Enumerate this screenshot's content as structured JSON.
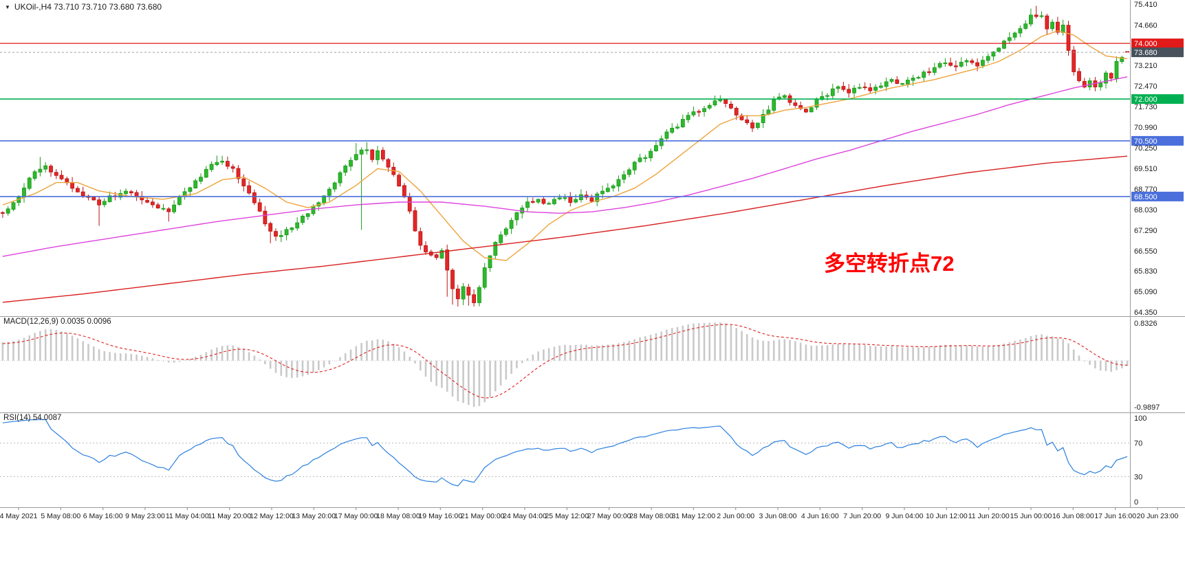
{
  "header": {
    "title": "UKOil-,H4  73.710 73.710 73.680 73.680",
    "symbol": "UKOil-",
    "timeframe": "H4"
  },
  "icons": {
    "chart_menu_arrow": "▼"
  },
  "chart_data": {
    "type": "candlestick",
    "symbol": "UKOil-",
    "timeframe": "H4",
    "current_bar": {
      "open": 73.71,
      "high": 73.71,
      "low": 73.68,
      "close": 73.68
    },
    "current_price": 73.68,
    "ylim": [
      64.35,
      75.41
    ],
    "bars": 211,
    "price_axis_labels": [
      {
        "text": "75.410"
      },
      {
        "text": "74.660"
      },
      {
        "text": "74.000",
        "badge": "#e21a1a"
      },
      {
        "text": "73.680",
        "badge": "#47525c"
      },
      {
        "text": "73.210"
      },
      {
        "text": "72.470"
      },
      {
        "text": "72.000",
        "badge": "#00b050"
      },
      {
        "text": "71.730"
      },
      {
        "text": "70.990"
      },
      {
        "text": "70.500",
        "badge": "#4a6fdc"
      },
      {
        "text": "70.250"
      },
      {
        "text": "69.510"
      },
      {
        "text": "68.770"
      },
      {
        "text": "68.500",
        "badge": "#4a6fdc"
      },
      {
        "text": "68.030"
      },
      {
        "text": "67.290"
      },
      {
        "text": "66.550"
      },
      {
        "text": "65.830"
      },
      {
        "text": "65.090"
      },
      {
        "text": "64.350"
      }
    ],
    "hlines": [
      {
        "price": 74.0,
        "color": "#e21a1a",
        "width": 1.3
      },
      {
        "price": 72.0,
        "color": "#00b050",
        "width": 1.6
      },
      {
        "price": 70.5,
        "color": "#4a6fdc",
        "width": 1.6
      },
      {
        "price": 68.5,
        "color": "#4a6fdc",
        "width": 1.6
      }
    ],
    "candle_colors": {
      "up": "#2eb82e",
      "up_stroke": "#179917",
      "down": "#e32727",
      "down_stroke": "#bb1111"
    },
    "close_anchors": [
      [
        0,
        67.95
      ],
      [
        3,
        68.5
      ],
      [
        6,
        69.45
      ],
      [
        8,
        69.6
      ],
      [
        10,
        69.3
      ],
      [
        13,
        68.75
      ],
      [
        16,
        68.45
      ],
      [
        18,
        68.2
      ],
      [
        20,
        68.5
      ],
      [
        23,
        68.65
      ],
      [
        26,
        68.4
      ],
      [
        29,
        68.15
      ],
      [
        31,
        67.9
      ],
      [
        33,
        68.45
      ],
      [
        36,
        69.0
      ],
      [
        39,
        69.6
      ],
      [
        41,
        69.8
      ],
      [
        43,
        69.45
      ],
      [
        45,
        68.9
      ],
      [
        47,
        68.3
      ],
      [
        49,
        67.5
      ],
      [
        51,
        67.05
      ],
      [
        53,
        67.3
      ],
      [
        55,
        67.55
      ],
      [
        57,
        67.95
      ],
      [
        60,
        68.5
      ],
      [
        62,
        69.0
      ],
      [
        64,
        69.6
      ],
      [
        66,
        70.05
      ],
      [
        68,
        70.25
      ],
      [
        69,
        69.9
      ],
      [
        70,
        70.15
      ],
      [
        71,
        69.8
      ],
      [
        73,
        69.3
      ],
      [
        75,
        68.5
      ],
      [
        77,
        67.3
      ],
      [
        78,
        66.8
      ],
      [
        79,
        66.5
      ],
      [
        81,
        66.3
      ],
      [
        82,
        66.55
      ],
      [
        83,
        65.9
      ],
      [
        84,
        65.2
      ],
      [
        85,
        64.85
      ],
      [
        86,
        65.25
      ],
      [
        87,
        64.9
      ],
      [
        88,
        64.75
      ],
      [
        89,
        65.3
      ],
      [
        90,
        65.9
      ],
      [
        91,
        66.4
      ],
      [
        92,
        66.8
      ],
      [
        94,
        67.3
      ],
      [
        96,
        67.9
      ],
      [
        98,
        68.25
      ],
      [
        100,
        68.45
      ],
      [
        102,
        68.2
      ],
      [
        104,
        68.5
      ],
      [
        106,
        68.3
      ],
      [
        108,
        68.55
      ],
      [
        110,
        68.4
      ],
      [
        112,
        68.65
      ],
      [
        114,
        68.95
      ],
      [
        116,
        69.35
      ],
      [
        118,
        69.7
      ],
      [
        120,
        69.95
      ],
      [
        122,
        70.35
      ],
      [
        124,
        70.75
      ],
      [
        126,
        71.05
      ],
      [
        128,
        71.35
      ],
      [
        130,
        71.6
      ],
      [
        132,
        71.85
      ],
      [
        134,
        72.05
      ],
      [
        136,
        71.7
      ],
      [
        138,
        71.2
      ],
      [
        140,
        70.95
      ],
      [
        142,
        71.45
      ],
      [
        144,
        71.9
      ],
      [
        146,
        72.1
      ],
      [
        148,
        71.75
      ],
      [
        150,
        71.5
      ],
      [
        152,
        71.95
      ],
      [
        154,
        72.2
      ],
      [
        156,
        72.4
      ],
      [
        158,
        72.2
      ],
      [
        160,
        72.45
      ],
      [
        162,
        72.3
      ],
      [
        164,
        72.55
      ],
      [
        166,
        72.7
      ],
      [
        168,
        72.5
      ],
      [
        170,
        72.75
      ],
      [
        172,
        72.9
      ],
      [
        174,
        73.1
      ],
      [
        176,
        73.3
      ],
      [
        178,
        73.1
      ],
      [
        180,
        73.4
      ],
      [
        182,
        73.2
      ],
      [
        184,
        73.55
      ],
      [
        186,
        73.9
      ],
      [
        188,
        74.25
      ],
      [
        190,
        74.6
      ],
      [
        192,
        74.95
      ],
      [
        194,
        75.0
      ],
      [
        195,
        74.55
      ],
      [
        196,
        74.75
      ],
      [
        197,
        74.35
      ],
      [
        198,
        74.6
      ],
      [
        199,
        73.8
      ],
      [
        200,
        73.0
      ],
      [
        201,
        72.7
      ],
      [
        202,
        72.5
      ],
      [
        203,
        72.65
      ],
      [
        204,
        72.4
      ],
      [
        205,
        72.6
      ],
      [
        206,
        72.95
      ],
      [
        207,
        72.75
      ],
      [
        208,
        73.3
      ],
      [
        209,
        73.45
      ],
      [
        210,
        73.68
      ]
    ],
    "wick_marks": [
      {
        "i": 7,
        "high": 69.92
      },
      {
        "i": 18,
        "low": 67.45
      },
      {
        "i": 31,
        "low": 67.6
      },
      {
        "i": 40,
        "high": 69.97
      },
      {
        "i": 50,
        "low": 66.82
      },
      {
        "i": 66,
        "high": 70.42
      },
      {
        "i": 67,
        "low": 67.3
      },
      {
        "i": 68,
        "high": 70.45
      },
      {
        "i": 83,
        "low": 64.9
      },
      {
        "i": 84,
        "low": 64.62
      },
      {
        "i": 85,
        "low": 64.55
      },
      {
        "i": 86,
        "low": 64.6
      },
      {
        "i": 87,
        "low": 64.58
      },
      {
        "i": 88,
        "low": 64.55
      },
      {
        "i": 192,
        "high": 75.25
      },
      {
        "i": 193,
        "high": 75.35
      },
      {
        "i": 194,
        "high": 75.15
      },
      {
        "i": 204,
        "low": 72.28
      }
    ],
    "moving_averages": [
      {
        "name": "fast",
        "color": "#eda33b",
        "anchors": [
          [
            0,
            68.2
          ],
          [
            6,
            68.6
          ],
          [
            10,
            69.0
          ],
          [
            14,
            69.0
          ],
          [
            18,
            68.7
          ],
          [
            24,
            68.5
          ],
          [
            30,
            68.4
          ],
          [
            36,
            68.6
          ],
          [
            41,
            69.1
          ],
          [
            45,
            69.2
          ],
          [
            49,
            68.8
          ],
          [
            53,
            68.3
          ],
          [
            57,
            68.1
          ],
          [
            61,
            68.3
          ],
          [
            66,
            68.9
          ],
          [
            70,
            69.5
          ],
          [
            74,
            69.4
          ],
          [
            78,
            68.7
          ],
          [
            82,
            67.8
          ],
          [
            86,
            66.9
          ],
          [
            90,
            66.3
          ],
          [
            94,
            66.2
          ],
          [
            98,
            66.8
          ],
          [
            102,
            67.5
          ],
          [
            106,
            68.0
          ],
          [
            110,
            68.3
          ],
          [
            114,
            68.5
          ],
          [
            118,
            68.8
          ],
          [
            122,
            69.3
          ],
          [
            126,
            69.9
          ],
          [
            130,
            70.5
          ],
          [
            134,
            71.1
          ],
          [
            138,
            71.4
          ],
          [
            142,
            71.4
          ],
          [
            146,
            71.6
          ],
          [
            150,
            71.7
          ],
          [
            154,
            71.85
          ],
          [
            158,
            72.0
          ],
          [
            162,
            72.2
          ],
          [
            166,
            72.4
          ],
          [
            170,
            72.55
          ],
          [
            174,
            72.7
          ],
          [
            178,
            72.9
          ],
          [
            182,
            73.1
          ],
          [
            186,
            73.35
          ],
          [
            190,
            73.75
          ],
          [
            194,
            74.25
          ],
          [
            197,
            74.45
          ],
          [
            200,
            74.3
          ],
          [
            203,
            73.9
          ],
          [
            206,
            73.55
          ],
          [
            210,
            73.45
          ]
        ]
      },
      {
        "name": "medium",
        "color": "#dd44dd",
        "anchors": [
          [
            0,
            66.35
          ],
          [
            10,
            66.7
          ],
          [
            20,
            67.0
          ],
          [
            30,
            67.3
          ],
          [
            40,
            67.6
          ],
          [
            50,
            67.85
          ],
          [
            58,
            68.05
          ],
          [
            66,
            68.2
          ],
          [
            74,
            68.3
          ],
          [
            82,
            68.3
          ],
          [
            90,
            68.15
          ],
          [
            98,
            67.95
          ],
          [
            104,
            67.9
          ],
          [
            110,
            67.95
          ],
          [
            116,
            68.1
          ],
          [
            122,
            68.3
          ],
          [
            128,
            68.55
          ],
          [
            134,
            68.85
          ],
          [
            140,
            69.15
          ],
          [
            146,
            69.5
          ],
          [
            152,
            69.85
          ],
          [
            158,
            70.15
          ],
          [
            164,
            70.5
          ],
          [
            170,
            70.85
          ],
          [
            176,
            71.15
          ],
          [
            182,
            71.45
          ],
          [
            188,
            71.8
          ],
          [
            194,
            72.1
          ],
          [
            200,
            72.4
          ],
          [
            205,
            72.6
          ],
          [
            210,
            72.8
          ]
        ]
      },
      {
        "name": "slow",
        "color": "#d82020",
        "anchors": [
          [
            0,
            64.7
          ],
          [
            15,
            65.0
          ],
          [
            30,
            65.35
          ],
          [
            45,
            65.7
          ],
          [
            60,
            66.0
          ],
          [
            75,
            66.35
          ],
          [
            90,
            66.7
          ],
          [
            105,
            67.05
          ],
          [
            120,
            67.45
          ],
          [
            135,
            67.9
          ],
          [
            150,
            68.4
          ],
          [
            165,
            68.9
          ],
          [
            180,
            69.35
          ],
          [
            195,
            69.7
          ],
          [
            210,
            69.95
          ]
        ]
      }
    ],
    "x_labels": [
      "4 May 2021",
      "5 May 08:00",
      "6 May 16:00",
      "9 May 23:00",
      "11 May 04:00",
      "11 May 20:00",
      "12 May 12:00",
      "13 May 20:00",
      "17 May 00:00",
      "18 May 08:00",
      "19 May 16:00",
      "21 May 00:00",
      "24 May 04:00",
      "25 May 12:00",
      "27 May 00:00",
      "28 May 08:00",
      "31 May 12:00",
      "2 Jun 00:00",
      "3 Jun 08:00",
      "4 Jun 16:00",
      "7 Jun 20:00",
      "9 Jun 04:00",
      "10 Jun 12:00",
      "11 Jun 20:00",
      "15 Jun 00:00",
      "16 Jun 08:00",
      "17 Jun 16:00",
      "20 Jun 23:00"
    ],
    "macd": {
      "header": "MACD(12,26,9) 0.0035 0.0096",
      "params": [
        12,
        26,
        9
      ],
      "values": [
        0.0035,
        0.0096
      ],
      "axis_max": 0.8326,
      "axis_min": -0.9897,
      "axis_max_label": "0.8326",
      "axis_min_label": "-0.9897",
      "hist_color": "#c9c9c9",
      "signal_color": "#e02020"
    },
    "rsi": {
      "header": "RSI(14) 54.0087",
      "period": 14,
      "value": 54.0087,
      "levels": [
        70,
        30
      ],
      "axis_labels": [
        "100",
        "70",
        "30",
        "0"
      ],
      "line_color": "#2a7fde"
    },
    "annotation": {
      "text": "多空转折点72",
      "color": "#ff0000"
    }
  }
}
